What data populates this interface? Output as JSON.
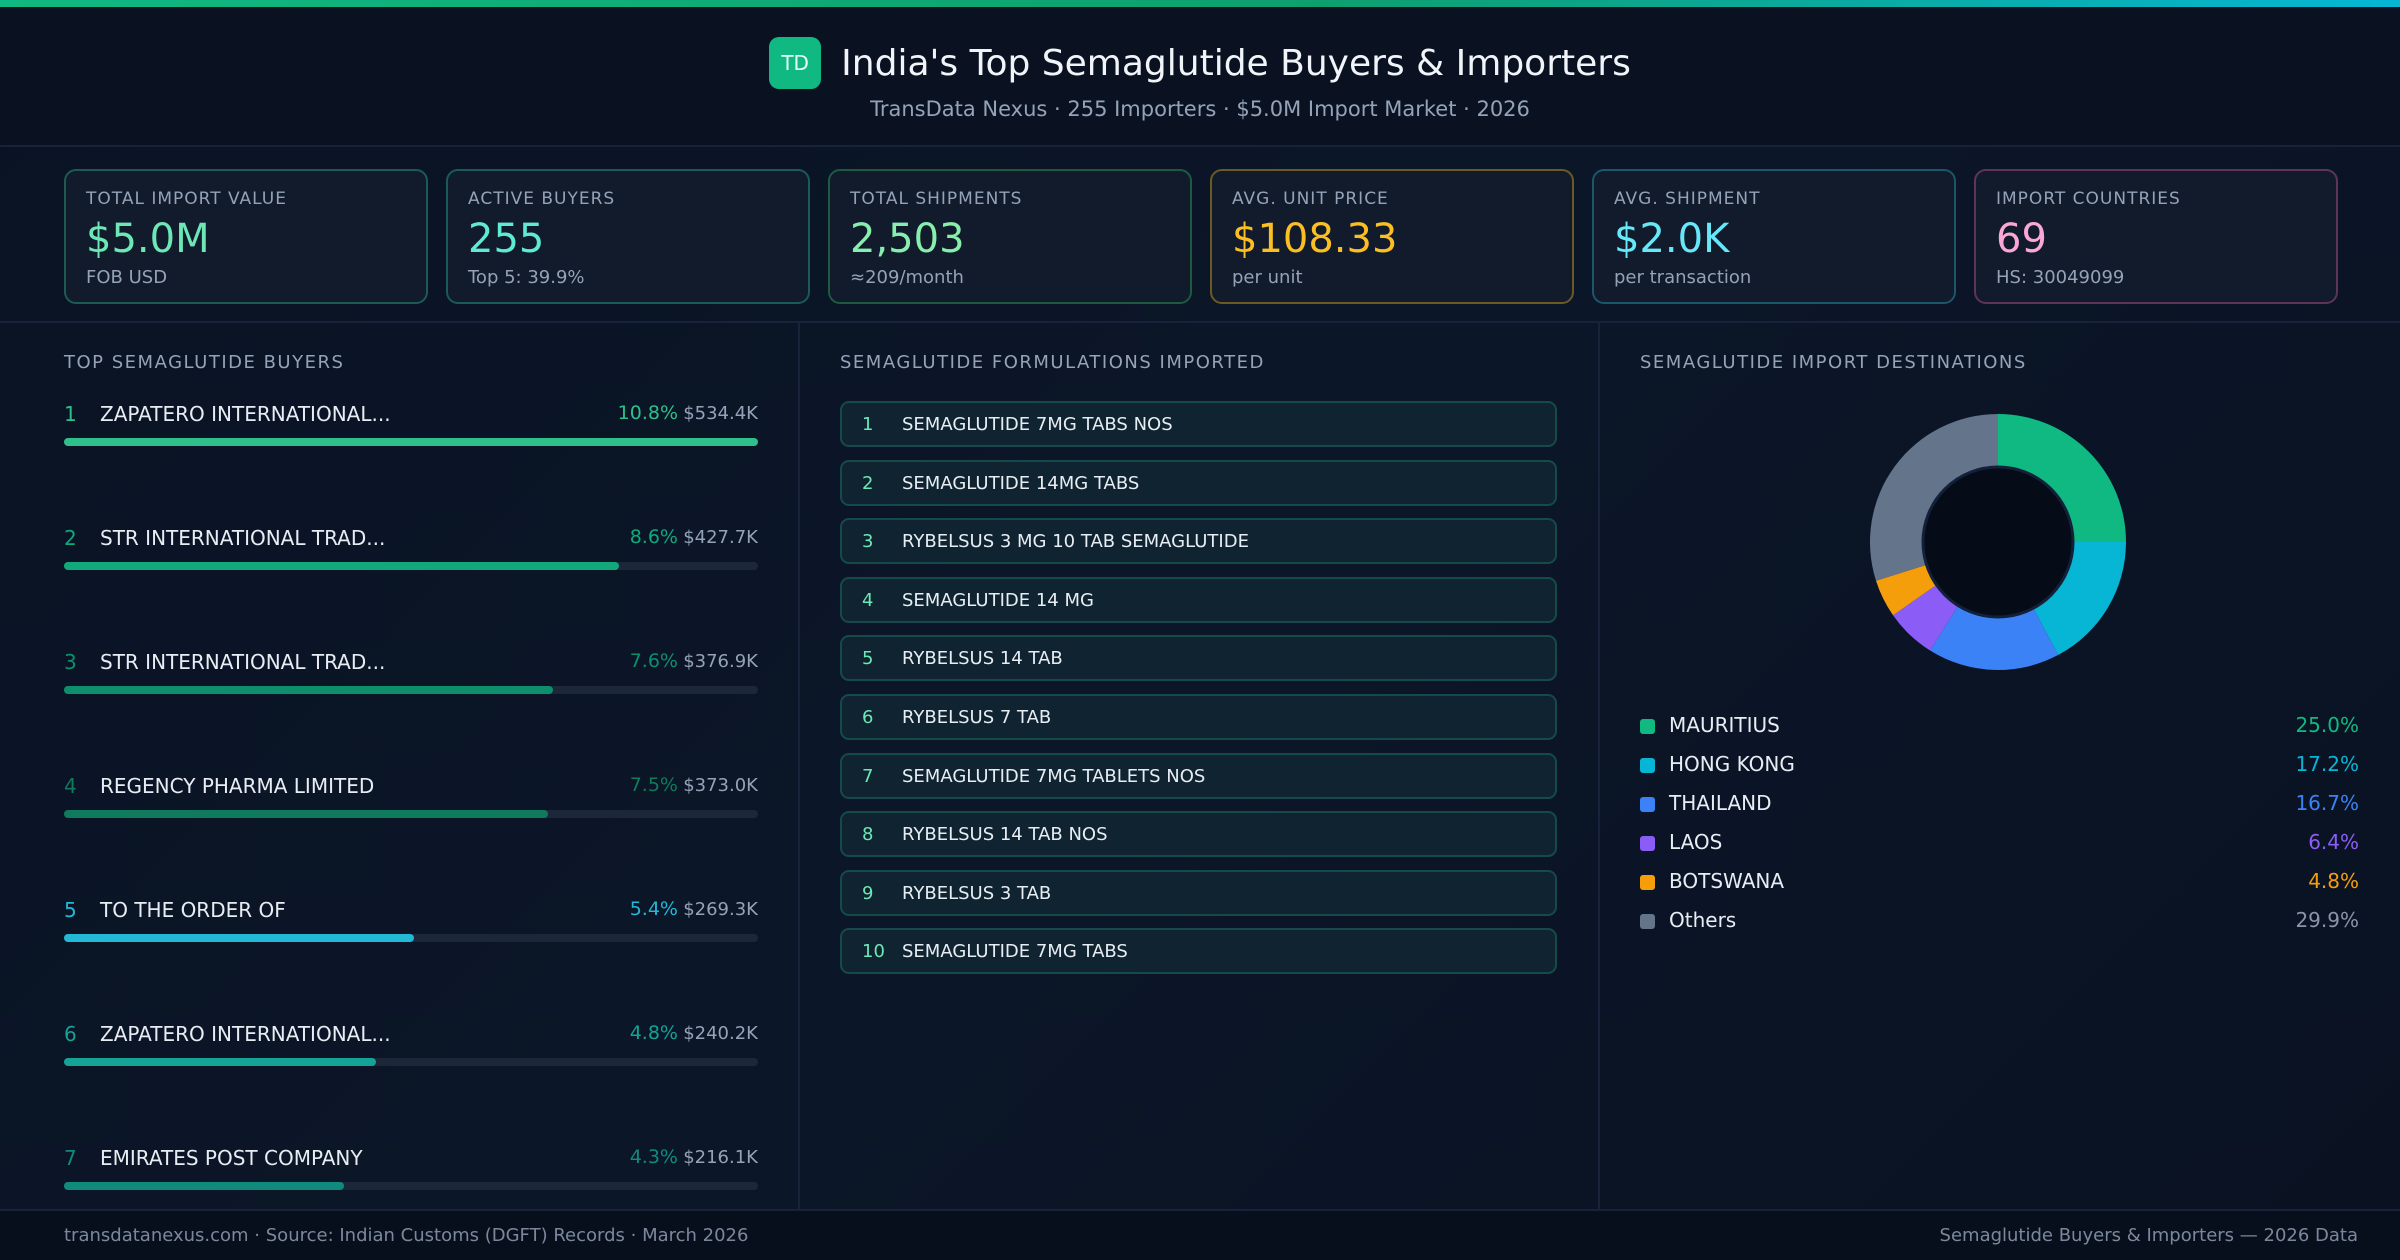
{
  "header": {
    "logo": "TD",
    "title": "India's Top Semaglutide Buyers & Importers",
    "subtitle": "TransData Nexus · 255 Importers · $5.0M Import Market · 2026"
  },
  "kpis": [
    {
      "label": "TOTAL IMPORT VALUE",
      "value": "$5.0M",
      "sub": "FOB USD",
      "color": "#6ee7b7",
      "border": "#1d5b52"
    },
    {
      "label": "ACTIVE BUYERS",
      "value": "255",
      "sub": "Top 5: 39.9%",
      "color": "#5eead4",
      "border": "#1b5a58"
    },
    {
      "label": "TOTAL SHIPMENTS",
      "value": "2,503",
      "sub": "≈209/month",
      "color": "#86efac",
      "border": "#1e5a40"
    },
    {
      "label": "AVG. UNIT PRICE",
      "value": "$108.33",
      "sub": "per unit",
      "color": "#fbbf24",
      "border": "#6b5a22"
    },
    {
      "label": "AVG. SHIPMENT",
      "value": "$2.0K",
      "sub": "per transaction",
      "color": "#67e8f9",
      "border": "#1b566a"
    },
    {
      "label": "IMPORT COUNTRIES",
      "value": "69",
      "sub": "HS: 30049099",
      "color": "#f9a8d4",
      "border": "#5e3458"
    }
  ],
  "buyers": {
    "title": "TOP SEMAGLUTIDE BUYERS",
    "items": [
      {
        "rank": "1",
        "name": "ZAPATERO INTERNATIONAL...",
        "pct": "10.8%",
        "value": "$534.4K",
        "share": 100,
        "color": "#2fbf8a"
      },
      {
        "rank": "2",
        "name": "STR INTERNATIONAL TRAD...",
        "pct": "8.6%",
        "value": "$427.7K",
        "share": 80,
        "color": "#11a97b"
      },
      {
        "rank": "3",
        "name": "STR INTERNATIONAL TRAD...",
        "pct": "7.6%",
        "value": "$376.9K",
        "share": 70.5,
        "color": "#0e8f6c"
      },
      {
        "rank": "4",
        "name": "REGENCY PHARMA LIMITED",
        "pct": "7.5%",
        "value": "$373.0K",
        "share": 69.8,
        "color": "#0f7a5c"
      },
      {
        "rank": "5",
        "name": "TO THE ORDER OF",
        "pct": "5.4%",
        "value": "$269.3K",
        "share": 50.4,
        "color": "#22b8d6"
      },
      {
        "rank": "6",
        "name": "ZAPATERO INTERNATIONAL...",
        "pct": "4.8%",
        "value": "$240.2K",
        "share": 44.9,
        "color": "#14a394"
      },
      {
        "rank": "7",
        "name": "EMIRATES POST COMPANY",
        "pct": "4.3%",
        "value": "$216.1K",
        "share": 40.4,
        "color": "#118a7e"
      }
    ]
  },
  "formulations": {
    "title": "SEMAGLUTIDE FORMULATIONS IMPORTED",
    "items": [
      {
        "rank": "1",
        "name": "SEMAGLUTIDE 7MG TABS NOS"
      },
      {
        "rank": "2",
        "name": "SEMAGLUTIDE 14MG TABS"
      },
      {
        "rank": "3",
        "name": "RYBELSUS 3 MG 10 TAB SEMAGLUTIDE"
      },
      {
        "rank": "4",
        "name": "SEMAGLUTIDE 14 MG"
      },
      {
        "rank": "5",
        "name": "RYBELSUS 14 TAB"
      },
      {
        "rank": "6",
        "name": "RYBELSUS 7 TAB"
      },
      {
        "rank": "7",
        "name": "SEMAGLUTIDE 7MG TABLETS NOS"
      },
      {
        "rank": "8",
        "name": "RYBELSUS 14 TAB NOS"
      },
      {
        "rank": "9",
        "name": "RYBELSUS 3 TAB"
      },
      {
        "rank": "10",
        "name": "SEMAGLUTIDE 7MG TABS"
      }
    ]
  },
  "chart_data": {
    "type": "pie",
    "title": "SEMAGLUTIDE IMPORT DESTINATIONS",
    "donut": true,
    "categories": [
      "MAURITIUS",
      "HONG KONG",
      "THAILAND",
      "LAOS",
      "BOTSWANA",
      "Others"
    ],
    "values": [
      25.0,
      17.2,
      16.7,
      6.4,
      4.8,
      29.9
    ],
    "labels": [
      "25.0%",
      "17.2%",
      "16.7%",
      "6.4%",
      "4.8%",
      "29.9%"
    ],
    "colors": [
      "#10b981",
      "#06b6d4",
      "#3b82f6",
      "#8b5cf6",
      "#f59e0b",
      "#64748b"
    ],
    "legend": "bottom"
  },
  "footer": {
    "left": "transdatanexus.com · Source: Indian Customs (DGFT) Records · March 2026",
    "right": "Semaglutide Buyers & Importers — 2026 Data"
  }
}
